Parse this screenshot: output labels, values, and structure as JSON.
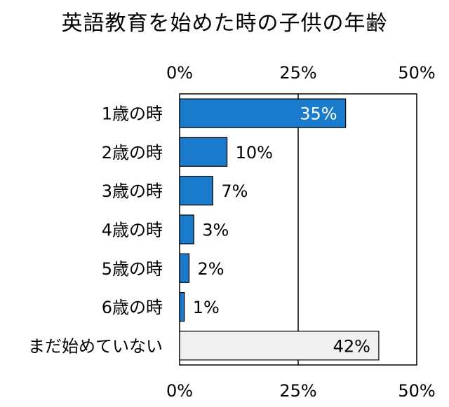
{
  "chart_data": {
    "type": "bar",
    "orientation": "horizontal",
    "title": "英語教育を始めた時の子供の年齢",
    "categories": [
      "1歳の時",
      "2歳の時",
      "3歳の時",
      "4歳の時",
      "5歳の時",
      "6歳の時",
      "まだ始めていない"
    ],
    "values": [
      35,
      10,
      7,
      3,
      2,
      1,
      42
    ],
    "data_labels": [
      "35%",
      "10%",
      "7%",
      "3%",
      "2%",
      "1%",
      "42%"
    ],
    "xlim": [
      0,
      50
    ],
    "x_ticks": [
      0,
      25,
      50
    ],
    "x_tick_labels": [
      "0%",
      "25%",
      "50%"
    ],
    "colors": [
      "#1a7acb",
      "#1a7acb",
      "#1a7acb",
      "#1a7acb",
      "#1a7acb",
      "#1a7acb",
      "#f0f0f0"
    ],
    "label_colors": [
      "#ffffff",
      "#000000",
      "#000000",
      "#000000",
      "#000000",
      "#000000",
      "#000000"
    ],
    "label_inside": [
      true,
      false,
      false,
      false,
      false,
      false,
      true
    ],
    "grid": true,
    "legend": "none"
  }
}
